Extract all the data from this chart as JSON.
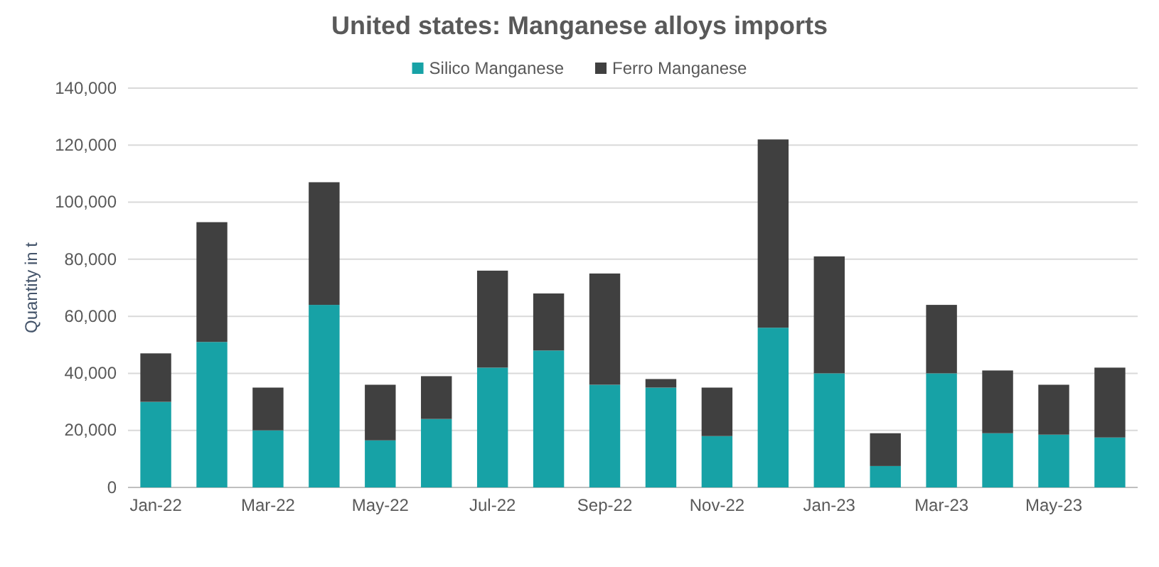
{
  "chart_data": {
    "type": "bar",
    "title": "United states: Manganese alloys imports",
    "ylabel": "Quantity in t",
    "categories": [
      "Jan-22",
      null,
      "Mar-22",
      null,
      "May-22",
      null,
      "Jul-22",
      null,
      "Sep-22",
      null,
      "Nov-22",
      null,
      "Jan-23",
      null,
      "Mar-23",
      null,
      "May-23",
      null
    ],
    "stacked": true,
    "series": [
      {
        "name": "Silico Manganese",
        "color": "#17a2a6",
        "values": [
          30000,
          51000,
          20000,
          64000,
          16500,
          24000,
          42000,
          48000,
          36000,
          35000,
          18000,
          56000,
          40000,
          7500,
          40000,
          19000,
          18500,
          17500
        ]
      },
      {
        "name": "Ferro Manganese",
        "color": "#404040",
        "values": [
          17000,
          42000,
          15000,
          43000,
          19500,
          15000,
          34000,
          20000,
          39000,
          3000,
          17000,
          66000,
          41000,
          11500,
          24000,
          22000,
          17500,
          24500
        ]
      }
    ],
    "ylim": [
      0,
      140000
    ],
    "yticks": [
      {
        "value": 0,
        "label": "0"
      },
      {
        "value": 20000,
        "label": "20,000"
      },
      {
        "value": 40000,
        "label": "40,000"
      },
      {
        "value": 60000,
        "label": "60,000"
      },
      {
        "value": 80000,
        "label": "80,000"
      },
      {
        "value": 100000,
        "label": "100,000"
      },
      {
        "value": 120000,
        "label": "120,000"
      },
      {
        "value": 140000,
        "label": "140,000"
      }
    ],
    "grid": "y",
    "legend": "top"
  }
}
